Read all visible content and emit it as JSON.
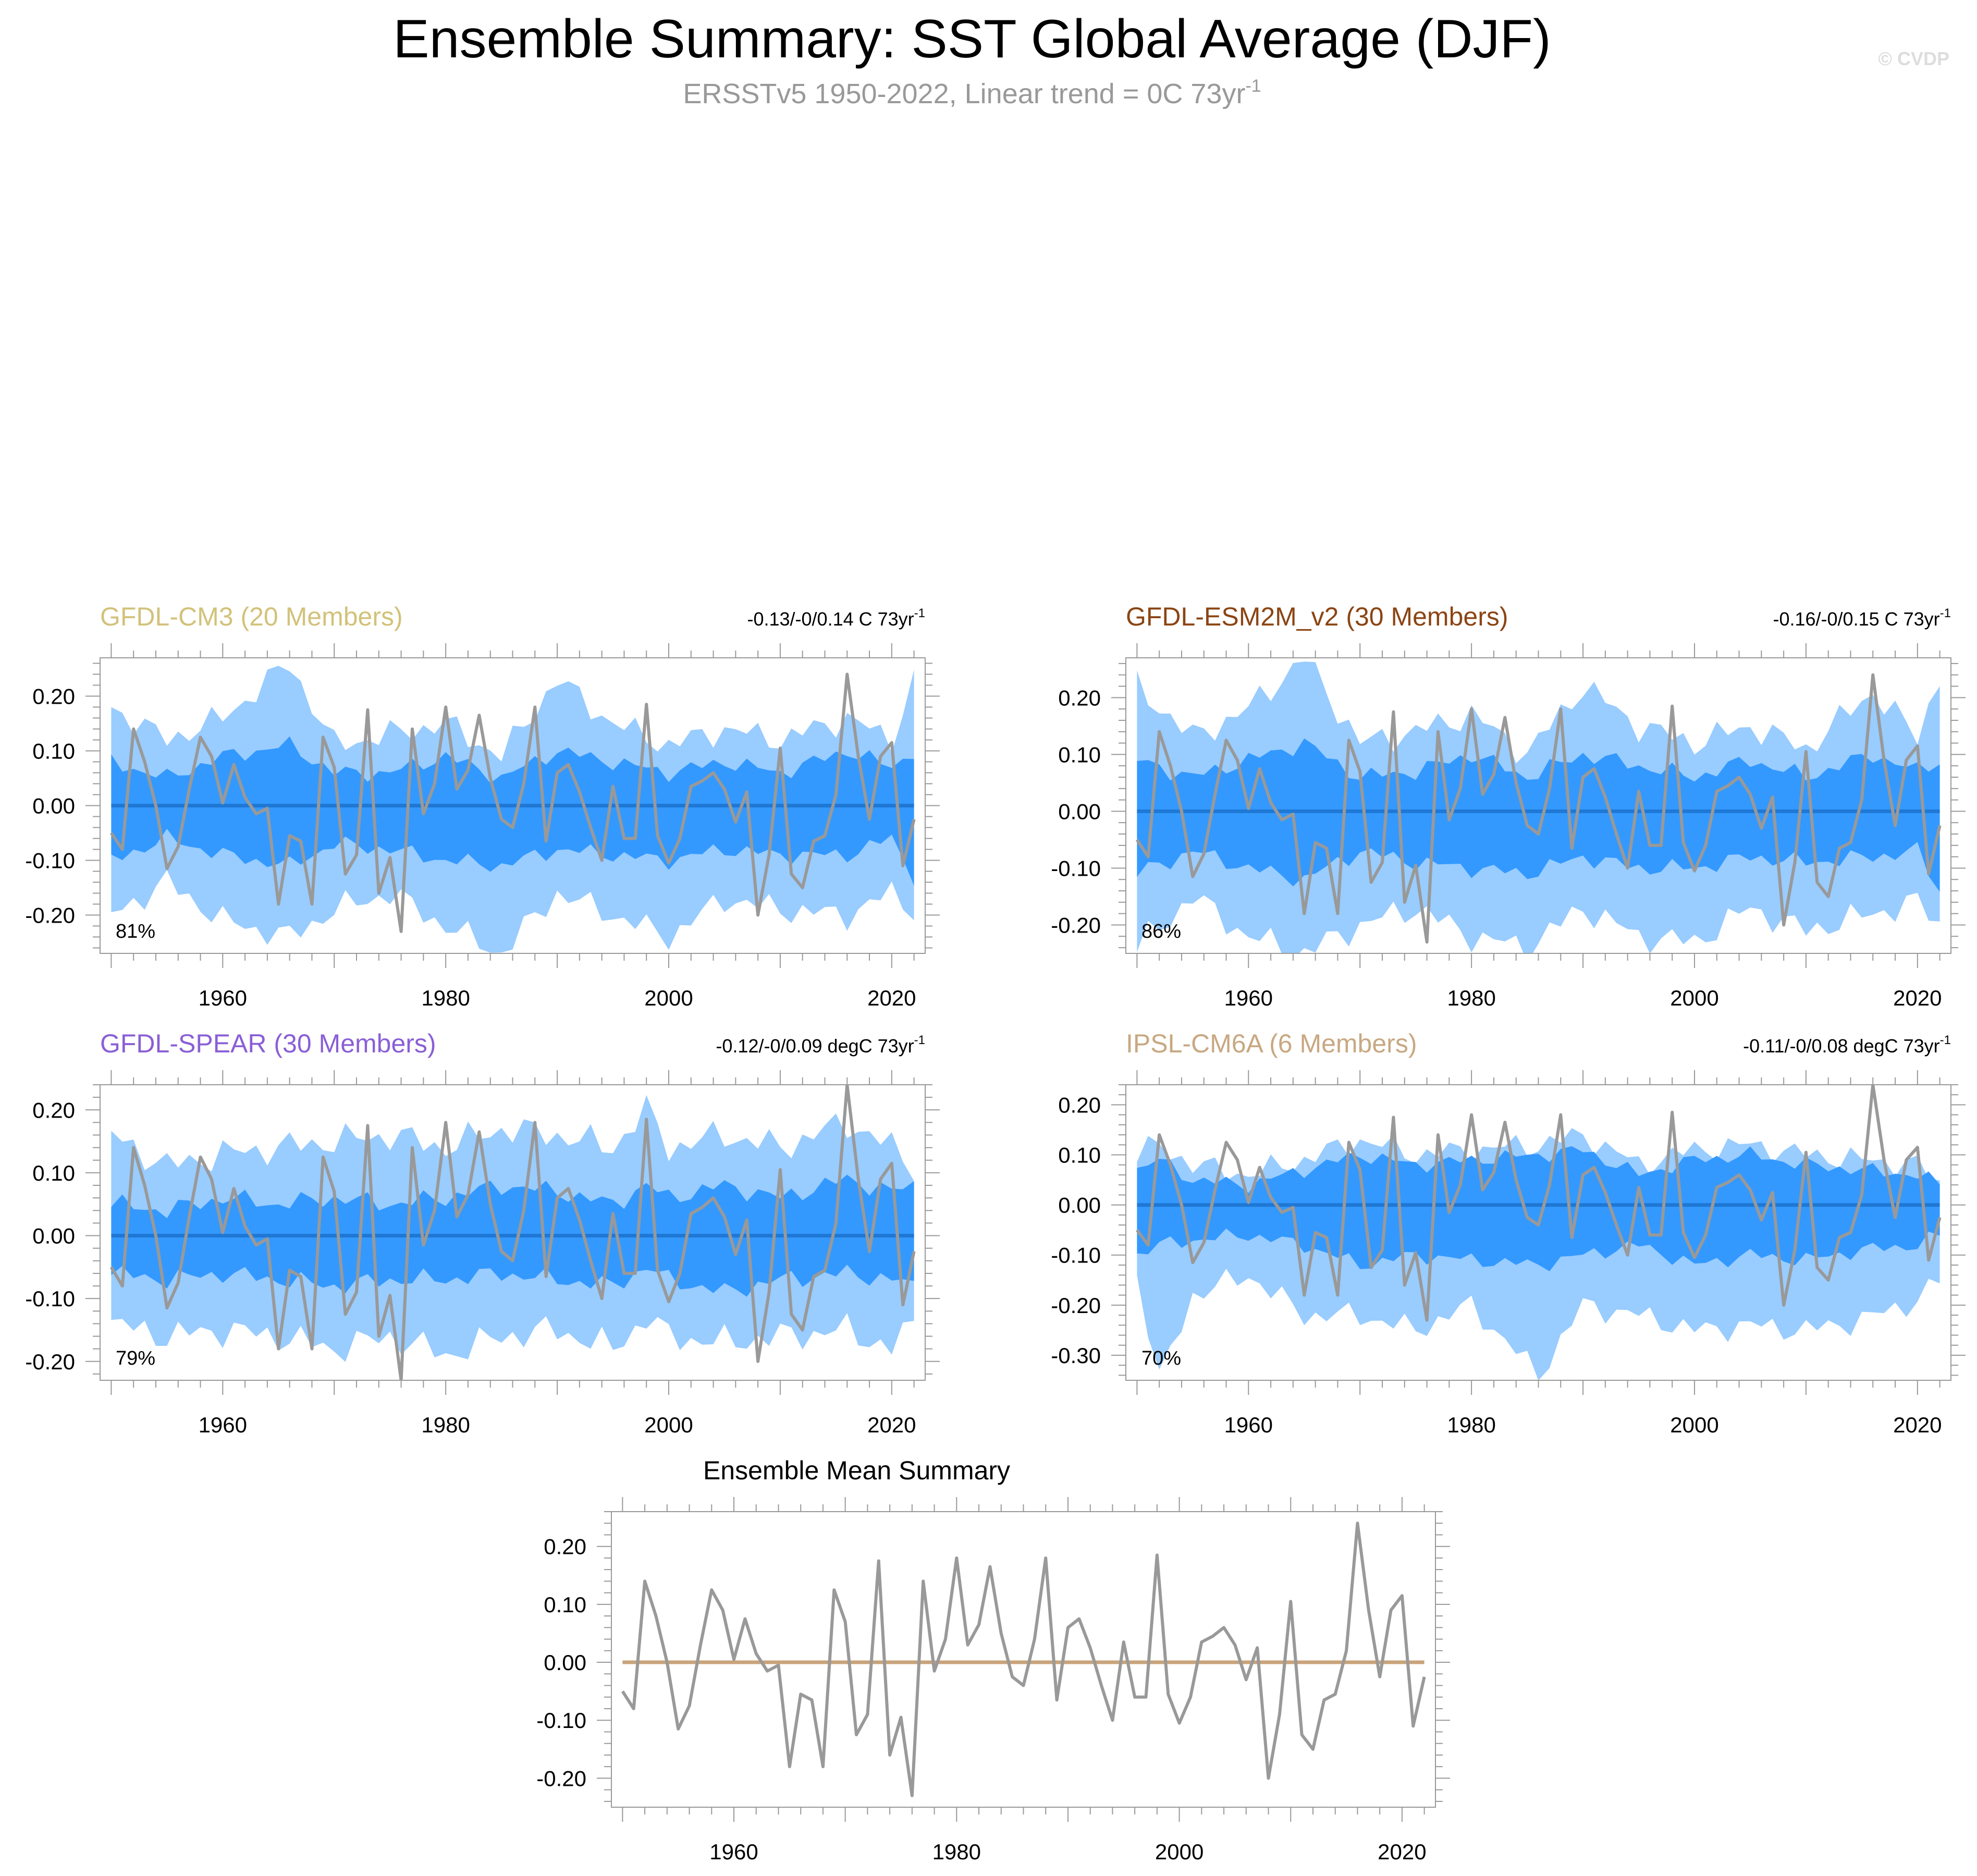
{
  "page": {
    "title": "Ensemble Summary: SST Global Average (DJF)",
    "subtitle": {
      "text": "ERSSTv5 1950-2022, Linear trend = 0C 73yr",
      "sup": "-1"
    },
    "watermark": "© CVDP"
  },
  "colors": {
    "outer_band": "#99ccff",
    "inner_band": "#3399ff",
    "ens_mean_line": "#1f78d4",
    "obs_line": "#999999",
    "zero_line": "#c9a37a"
  },
  "chart_data": [
    {
      "type": "area",
      "title": "GFDL-CM3 (20 Members)",
      "title_color": "#d2c27a",
      "trend": {
        "text": "-0.13/-0/0.14 C 73yr",
        "sup": "-1"
      },
      "percent": "81%",
      "xlim": [
        1949,
        2023
      ],
      "ylim": [
        -0.27,
        0.27
      ],
      "xticks": [
        1960,
        1980,
        2000,
        2020
      ],
      "yticks": [
        0.2,
        0.1,
        0.0,
        -0.1,
        -0.2
      ],
      "ytick_labels": [
        "0.20",
        "0.10",
        "0.00",
        "-0.10",
        "-0.20"
      ],
      "bands_x": [
        1950,
        1955,
        1960,
        1966,
        1970,
        1975,
        1980,
        1985,
        1990,
        1995,
        2000,
        2005,
        2010,
        2016,
        2020,
        2022
      ],
      "outer_upper": [
        0.18,
        0.12,
        0.16,
        0.26,
        0.11,
        0.13,
        0.15,
        0.09,
        0.23,
        0.15,
        0.11,
        0.14,
        0.12,
        0.16,
        0.12,
        0.23
      ],
      "inner_upper": [
        0.08,
        0.05,
        0.09,
        0.11,
        0.06,
        0.06,
        0.09,
        0.05,
        0.1,
        0.08,
        0.06,
        0.08,
        0.06,
        0.1,
        0.07,
        0.1
      ],
      "inner_lower": [
        -0.1,
        -0.06,
        -0.09,
        -0.11,
        -0.07,
        -0.08,
        -0.1,
        -0.11,
        -0.08,
        -0.09,
        -0.1,
        -0.08,
        -0.09,
        -0.09,
        -0.06,
        -0.13
      ],
      "outer_lower": [
        -0.2,
        -0.14,
        -0.21,
        -0.24,
        -0.19,
        -0.16,
        -0.22,
        -0.27,
        -0.16,
        -0.2,
        -0.24,
        -0.17,
        -0.19,
        -0.2,
        -0.16,
        -0.19
      ],
      "ens_mean": 0.0
    },
    {
      "type": "area",
      "title": "GFDL-ESM2M_v2 (30 Members)",
      "title_color": "#8b4513",
      "trend": {
        "text": "-0.16/-0/0.15 C 73yr",
        "sup": "-1"
      },
      "percent": "86%",
      "xlim": [
        1949,
        2023
      ],
      "ylim": [
        -0.25,
        0.27
      ],
      "xticks": [
        1960,
        1980,
        2000,
        2020
      ],
      "yticks": [
        0.2,
        0.1,
        0.0,
        -0.1,
        -0.2
      ],
      "ytick_labels": [
        "0.20",
        "0.10",
        "0.00",
        "-0.10",
        "-0.20"
      ],
      "bands_x": [
        1950,
        1955,
        1960,
        1965,
        1970,
        1975,
        1980,
        1985,
        1990,
        1995,
        2000,
        2005,
        2010,
        2016,
        2020,
        2022
      ],
      "outer_upper": [
        0.22,
        0.13,
        0.18,
        0.27,
        0.12,
        0.14,
        0.17,
        0.1,
        0.22,
        0.15,
        0.12,
        0.15,
        0.11,
        0.21,
        0.13,
        0.24
      ],
      "inner_upper": [
        0.09,
        0.06,
        0.09,
        0.12,
        0.06,
        0.07,
        0.1,
        0.06,
        0.1,
        0.08,
        0.06,
        0.09,
        0.06,
        0.1,
        0.07,
        0.09
      ],
      "inner_lower": [
        -0.11,
        -0.07,
        -0.1,
        -0.12,
        -0.07,
        -0.09,
        -0.1,
        -0.11,
        -0.08,
        -0.1,
        -0.1,
        -0.08,
        -0.09,
        -0.08,
        -0.07,
        -0.14
      ],
      "outer_lower": [
        -0.24,
        -0.15,
        -0.22,
        -0.25,
        -0.2,
        -0.17,
        -0.22,
        -0.24,
        -0.17,
        -0.22,
        -0.23,
        -0.17,
        -0.21,
        -0.18,
        -0.16,
        -0.2
      ],
      "ens_mean": 0.0
    },
    {
      "type": "area",
      "title": "GFDL-SPEAR (30 Members)",
      "title_color": "#8a5fd6",
      "trend": {
        "text": "-0.12/-0/0.09 degC 73yr",
        "sup": "-1"
      },
      "percent": "79%",
      "xlim": [
        1949,
        2023
      ],
      "ylim": [
        -0.23,
        0.24
      ],
      "xticks": [
        1960,
        1980,
        2000,
        2020
      ],
      "yticks": [
        0.2,
        0.1,
        0.0,
        -0.1,
        -0.2
      ],
      "ytick_labels": [
        "0.20",
        "0.10",
        "0.00",
        "-0.10",
        "-0.20"
      ],
      "bands_x": [
        1950,
        1955,
        1960,
        1965,
        1970,
        1975,
        1980,
        1985,
        1990,
        1995,
        1998,
        2000,
        2005,
        2010,
        2016,
        2020,
        2022
      ],
      "outer_upper": [
        0.16,
        0.11,
        0.13,
        0.14,
        0.15,
        0.16,
        0.14,
        0.17,
        0.16,
        0.14,
        0.2,
        0.14,
        0.16,
        0.14,
        0.18,
        0.14,
        0.11
      ],
      "inner_upper": [
        0.05,
        0.04,
        0.06,
        0.05,
        0.06,
        0.05,
        0.06,
        0.08,
        0.07,
        0.05,
        0.08,
        0.06,
        0.08,
        0.06,
        0.09,
        0.07,
        0.08
      ],
      "inner_lower": [
        -0.06,
        -0.07,
        -0.06,
        -0.07,
        -0.08,
        -0.07,
        -0.07,
        -0.06,
        -0.07,
        -0.08,
        -0.05,
        -0.07,
        -0.09,
        -0.07,
        -0.06,
        -0.07,
        -0.08
      ],
      "outer_lower": [
        -0.14,
        -0.16,
        -0.15,
        -0.16,
        -0.18,
        -0.16,
        -0.19,
        -0.16,
        -0.15,
        -0.18,
        -0.13,
        -0.16,
        -0.17,
        -0.16,
        -0.15,
        -0.18,
        -0.14
      ],
      "ens_mean": 0.0
    },
    {
      "type": "area",
      "title": "IPSL-CM6A (6 Members)",
      "title_color": "#c8a882",
      "trend": {
        "text": "-0.11/-0/0.08 degC 73yr",
        "sup": "-1"
      },
      "percent": "70%",
      "xlim": [
        1949,
        2023
      ],
      "ylim": [
        -0.35,
        0.24
      ],
      "xticks": [
        1960,
        1980,
        2000,
        2020
      ],
      "yticks": [
        0.2,
        0.1,
        0.0,
        -0.1,
        -0.2,
        -0.3
      ],
      "ytick_labels": [
        "0.20",
        "0.10",
        "0.00",
        "-0.10",
        "-0.20",
        "-0.30"
      ],
      "bands_x": [
        1950,
        1952,
        1955,
        1960,
        1965,
        1970,
        1975,
        1980,
        1986,
        1990,
        1995,
        2000,
        2005,
        2010,
        2015,
        2020,
        2022
      ],
      "outer_upper": [
        0.1,
        0.12,
        0.08,
        0.06,
        0.09,
        0.13,
        0.1,
        0.11,
        0.12,
        0.14,
        0.08,
        0.11,
        0.12,
        0.1,
        0.09,
        0.08,
        0.04
      ],
      "inner_upper": [
        0.07,
        0.09,
        0.05,
        0.04,
        0.07,
        0.1,
        0.08,
        0.09,
        0.1,
        0.11,
        0.06,
        0.09,
        0.1,
        0.08,
        0.07,
        0.06,
        0.04
      ],
      "inner_lower": [
        -0.1,
        -0.08,
        -0.07,
        -0.06,
        -0.08,
        -0.12,
        -0.1,
        -0.11,
        -0.12,
        -0.1,
        -0.08,
        -0.12,
        -0.1,
        -0.11,
        -0.09,
        -0.08,
        -0.06
      ],
      "outer_lower": [
        -0.14,
        -0.35,
        -0.18,
        -0.14,
        -0.22,
        -0.22,
        -0.25,
        -0.2,
        -0.34,
        -0.2,
        -0.22,
        -0.25,
        -0.24,
        -0.25,
        -0.23,
        -0.19,
        -0.15
      ],
      "ens_mean": 0.0
    },
    {
      "type": "line",
      "title": "Ensemble Mean Summary",
      "title_color": "#000000",
      "xlim": [
        1949,
        2023
      ],
      "ylim": [
        -0.25,
        0.26
      ],
      "xticks": [
        1960,
        1980,
        2000,
        2020
      ],
      "yticks": [
        0.2,
        0.1,
        0.0,
        -0.1,
        -0.2
      ],
      "ytick_labels": [
        "0.20",
        "0.10",
        "0.00",
        "-0.10",
        "-0.20"
      ],
      "zero_line": 0.0
    }
  ],
  "observations": {
    "name": "ERSSTv5",
    "x_start": 1950,
    "values": [
      -0.05,
      -0.08,
      0.14,
      0.08,
      0.0,
      -0.115,
      -0.075,
      0.03,
      0.125,
      0.09,
      0.005,
      0.075,
      0.015,
      -0.015,
      -0.005,
      -0.18,
      -0.055,
      -0.065,
      -0.18,
      0.125,
      0.07,
      -0.125,
      -0.09,
      0.175,
      -0.16,
      -0.095,
      -0.23,
      0.14,
      -0.015,
      0.04,
      0.18,
      0.03,
      0.065,
      0.165,
      0.05,
      -0.025,
      -0.04,
      0.04,
      0.18,
      -0.065,
      0.06,
      0.075,
      0.025,
      -0.04,
      -0.1,
      0.035,
      -0.06,
      -0.06,
      0.185,
      -0.055,
      -0.105,
      -0.06,
      0.035,
      0.045,
      0.06,
      0.03,
      -0.03,
      0.025,
      -0.2,
      -0.09,
      0.105,
      -0.125,
      -0.15,
      -0.065,
      -0.055,
      0.02,
      0.24,
      0.09,
      -0.025,
      0.09,
      0.115,
      -0.11,
      -0.025
    ]
  }
}
